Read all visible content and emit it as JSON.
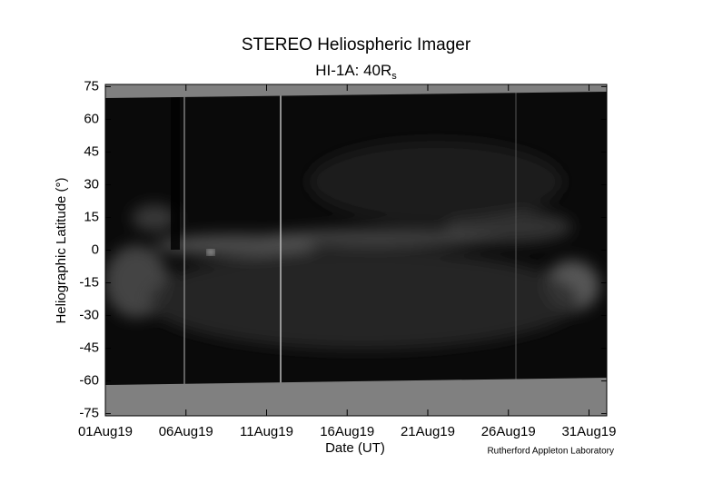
{
  "chart_data": {
    "type": "image",
    "title": "STEREO Heliospheric Imager",
    "subtitle": {
      "text": "HI-1A: 40R",
      "subscript": "s"
    },
    "x_label": "Date (UT)",
    "y_label": "Heliographic Latitude (°)",
    "credit": "Rutherford Appleton Laboratory",
    "xlim": [
      0,
      31.1
    ],
    "xticks": [
      {
        "value": 0,
        "label": "01Aug19"
      },
      {
        "value": 5,
        "label": "06Aug19"
      },
      {
        "value": 10,
        "label": "11Aug19"
      },
      {
        "value": 15,
        "label": "16Aug19"
      },
      {
        "value": 20,
        "label": "21Aug19"
      },
      {
        "value": 25,
        "label": "26Aug19"
      },
      {
        "value": 30,
        "label": "31Aug19"
      }
    ],
    "ylim": [
      -76,
      76
    ],
    "yticks": [
      75,
      60,
      45,
      30,
      15,
      0,
      -15,
      -30,
      -45,
      -60,
      -75
    ]
  }
}
